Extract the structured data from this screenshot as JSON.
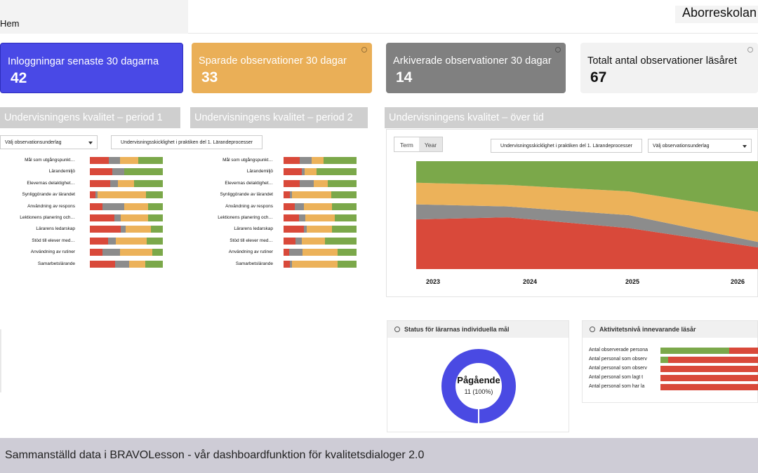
{
  "header": {
    "breadcrumb": "Hem",
    "school": "Aborreskolan"
  },
  "cards": [
    {
      "title": "Inloggningar senaste 30 dagarna",
      "value": "42",
      "color": "#4949e6"
    },
    {
      "title": "Sparade observationer 30 dagar",
      "value": "33",
      "color": "#eaaf57"
    },
    {
      "title": "Arkiverade observationer 30 dagar",
      "value": "14",
      "color": "#808080"
    },
    {
      "title": "Totalt antal observationer läsåret",
      "value": "67",
      "color": "#f2f2f2"
    }
  ],
  "sections": {
    "period1": "Undervisningens kvalitet – period 1",
    "period2": "Undervisningens kvalitet – period 2",
    "overtime": "Undervisningens kvalitet – över tid"
  },
  "filters": {
    "underlag": "Välj observationsunderlag",
    "skicklighet": "Undervisningsskicklighet i praktiken del 1. Lärandeprocesser",
    "term": "Term",
    "year": "Year"
  },
  "colors": {
    "red": "#d9493a",
    "gray": "#8c8c8c",
    "orange": "#ecb25a",
    "green": "#7ba84a"
  },
  "chart_data": [
    {
      "type": "bar",
      "categories": [
        "Mål som utgångspunkt…",
        "Lärandemiljö",
        "Elevernas delaktighet…",
        "Synliggörande av lärandet",
        "Användning av respons",
        "Lektionens planering och…",
        "Lärarens ledarskap",
        "Stöd till elever med…",
        "Användning av rutiner",
        "Samarbetslärande"
      ],
      "stacked": true,
      "series": [
        {
          "values": [
            26,
            31,
            28,
            8,
            17,
            34,
            42,
            25,
            17,
            35
          ]
        },
        {
          "values": [
            15,
            16,
            10,
            3,
            30,
            8,
            7,
            11,
            24,
            19
          ]
        },
        {
          "values": [
            25,
            0,
            23,
            66,
            33,
            38,
            35,
            42,
            45,
            22
          ]
        },
        {
          "values": [
            34,
            53,
            39,
            23,
            20,
            20,
            16,
            22,
            14,
            24
          ]
        }
      ],
      "xlim": [
        0,
        100
      ]
    },
    {
      "type": "bar",
      "categories": [
        "Mål som utgångspunkt…",
        "Lärandemiljö",
        "Elevernas delaktighet…",
        "Synliggörande av lärandet",
        "Användning av respons",
        "Lektionens planering och…",
        "Lärarens ledarskap",
        "Stöd till elever med…",
        "Användning av rutiner",
        "Samarbetslärande"
      ],
      "stacked": true,
      "series": [
        {
          "values": [
            22,
            25,
            22,
            9,
            15,
            21,
            28,
            16,
            8,
            9
          ]
        },
        {
          "values": [
            16,
            4,
            19,
            3,
            13,
            9,
            4,
            9,
            18,
            3
          ]
        },
        {
          "values": [
            17,
            16,
            20,
            53,
            38,
            40,
            34,
            32,
            48,
            62
          ]
        },
        {
          "values": [
            45,
            55,
            39,
            35,
            34,
            30,
            34,
            43,
            26,
            26
          ]
        }
      ],
      "xlim": [
        0,
        100
      ]
    },
    {
      "type": "area",
      "stacked": true,
      "x": [
        "2023",
        "2024",
        "2025",
        "2026"
      ],
      "series": [
        {
          "values": [
            46,
            48,
            38,
            20
          ]
        },
        {
          "values": [
            14,
            10,
            12,
            5
          ]
        },
        {
          "values": [
            20,
            20,
            22,
            28
          ]
        },
        {
          "values": [
            20,
            22,
            28,
            47
          ]
        }
      ],
      "ylim": [
        0,
        100
      ]
    },
    {
      "type": "pie",
      "labels": [
        "Pågående"
      ],
      "values": [
        11
      ],
      "annotation": "11 (100%)"
    },
    {
      "type": "bar",
      "title": "Aktivitetsnivå innevarande läsår",
      "categories": [
        "Antal observerade persona",
        "Antal personal som observ",
        "Antal personal som observ",
        "Antal personal som lagt t",
        "Antal personal som har la"
      ],
      "stacked": true,
      "series": [
        {
          "values": [
            70,
            8,
            0,
            0,
            0
          ]
        },
        {
          "values": [
            30,
            92,
            100,
            100,
            100
          ]
        }
      ],
      "xlim": [
        0,
        100
      ]
    }
  ],
  "status_panel": {
    "title": "Status för lärarnas individuella mål",
    "center_label": "Pågående",
    "center_value": "11 (100%)"
  },
  "activity_panel": {
    "title": "Aktivitetsnivå innevarande läsår"
  },
  "caption": "Sammanställd data i BRAVOLesson - vår dashboardfunktion för kvalitetsdialoger 2.0"
}
